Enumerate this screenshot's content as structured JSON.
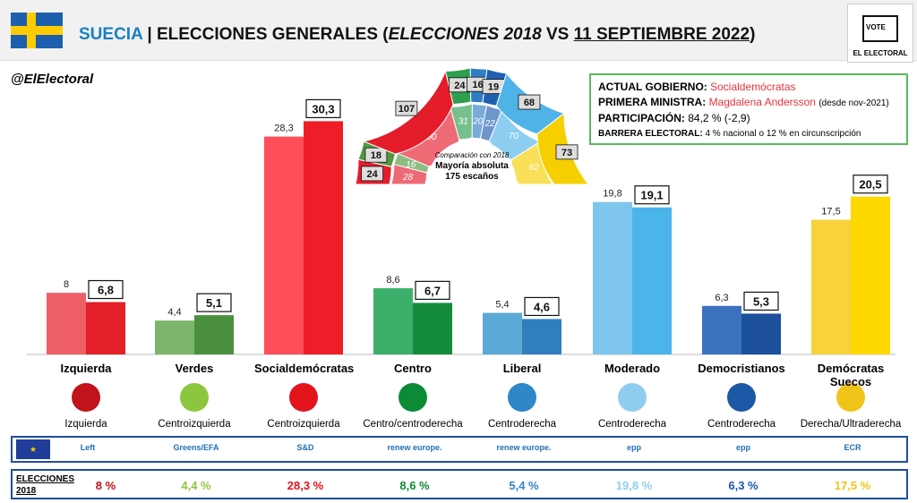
{
  "header": {
    "country": "SUECIA",
    "sep": "|",
    "title_main": "ELECCIONES GENERALES (",
    "title_italic": "ELECCIONES 2018",
    "title_vs": " VS ",
    "title_date": "11 SEPTIEMBRE 2022",
    "title_close": ")"
  },
  "logo": {
    "vote": "VOTE",
    "name": "EL ELECTORAL"
  },
  "handle": "@ElElectoral",
  "info": {
    "gov_label": "ACTUAL GOBIERNO:",
    "gov_value": "Socialdemócratas",
    "pm_label": "PRIMERA MINISTRA:",
    "pm_value": "Magdalena Andersson",
    "pm_note": "(desde nov-2021)",
    "part_label": "PARTICIPACIÓN:",
    "part_value": "84,2 % (-2,9)",
    "bar_label": "BARRERA ELECTORAL:",
    "bar_value": "4 % nacional o 12 % en circunscripción"
  },
  "parliament": {
    "caption1": "Comparación con 2018",
    "caption2": "Mayoría absoluta",
    "caption3": "175 escaños",
    "seats_2022": [
      24,
      18,
      107,
      24,
      16,
      19,
      68,
      73
    ],
    "seats_2018": [
      28,
      16,
      100,
      31,
      20,
      22,
      70,
      62
    ],
    "colors": [
      "#e51c2a",
      "#4f9a3e",
      "#e51c2a",
      "#2e9e4f",
      "#2f7ec3",
      "#1f5fb0",
      "#4fb3e8",
      "#f5cf00"
    ]
  },
  "chart_data": {
    "type": "bar",
    "categories": [
      "Izquierda",
      "Verdes",
      "Socialdemócratas",
      "Centro",
      "Liberal",
      "Moderado",
      "Democristianos",
      "Demócratas Suecos"
    ],
    "series": [
      {
        "values": [
          8,
          4.4,
          28.3,
          8.6,
          5.4,
          19.8,
          6.3,
          17.5
        ],
        "labels": [
          "8",
          "4,4",
          "28,3",
          "8,6",
          "5,4",
          "19,8",
          "6,3",
          "17,5"
        ]
      },
      {
        "values": [
          6.8,
          5.1,
          30.3,
          6.7,
          4.6,
          19.1,
          5.3,
          20.5
        ],
        "labels": [
          "6,8",
          "5,1",
          "30,3",
          "6,7",
          "4,6",
          "19,1",
          "5,3",
          "20,5"
        ]
      }
    ],
    "colors_2018": [
      "#ee5f66",
      "#7bb56b",
      "#ff4f5a",
      "#3cb06a",
      "#5aa9d6",
      "#7ec6ee",
      "#3b72bd",
      "#f7d23b"
    ],
    "colors_2022": [
      "#e31f27",
      "#4a8f3d",
      "#ef1d27",
      "#148c3c",
      "#2f7fbe",
      "#4bb4ea",
      "#1c4f9c",
      "#ffd800"
    ],
    "ylim": [
      0,
      32
    ]
  },
  "parties": [
    {
      "ideology": "Izquierda",
      "eu_group": "Left",
      "result": "8 %",
      "color": "#c0131c"
    },
    {
      "ideology": "Centroizquierda",
      "eu_group": "Greens/EFA",
      "result": "4,4 %",
      "color": "#8cc63f"
    },
    {
      "ideology": "Centroizquierda",
      "eu_group": "S&D",
      "result": "28,3 %",
      "color": "#e3141c"
    },
    {
      "ideology": "Centro/centroderecha",
      "eu_group": "renew europe.",
      "result": "8,6 %",
      "color": "#0c8a36"
    },
    {
      "ideology": "Centroderecha",
      "eu_group": "renew europe.",
      "result": "5,4 %",
      "color": "#2f86c8"
    },
    {
      "ideology": "Centroderecha",
      "eu_group": "epp",
      "result": "19,8 %",
      "color": "#8fcdf0"
    },
    {
      "ideology": "Centroderecha",
      "eu_group": "epp",
      "result": "6,3 %",
      "color": "#1d58a6"
    },
    {
      "ideology": "Derecha/Ultraderecha",
      "eu_group": "ECR",
      "result": "17,5 %",
      "color": "#f0c419"
    }
  ],
  "footer": {
    "elections_label_1": "ELECCIONES",
    "elections_label_2": "2018"
  }
}
